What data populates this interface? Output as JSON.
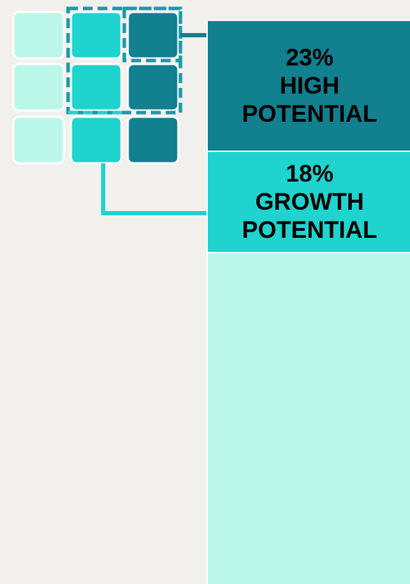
{
  "chart_data": {
    "type": "stacked-bar",
    "series": [
      {
        "name": "HIGH POTENTIAL",
        "color": "#11808f",
        "values": [
          23
        ],
        "value_labels": [
          "23%"
        ]
      },
      {
        "name": "GROWTH POTENTIAL",
        "color": "#1fd3cf",
        "values": [
          18
        ],
        "value_labels": [
          "18%"
        ]
      },
      {
        "name": null,
        "color": "#bbf7e9",
        "values": [
          59
        ]
      }
    ]
  }
}
